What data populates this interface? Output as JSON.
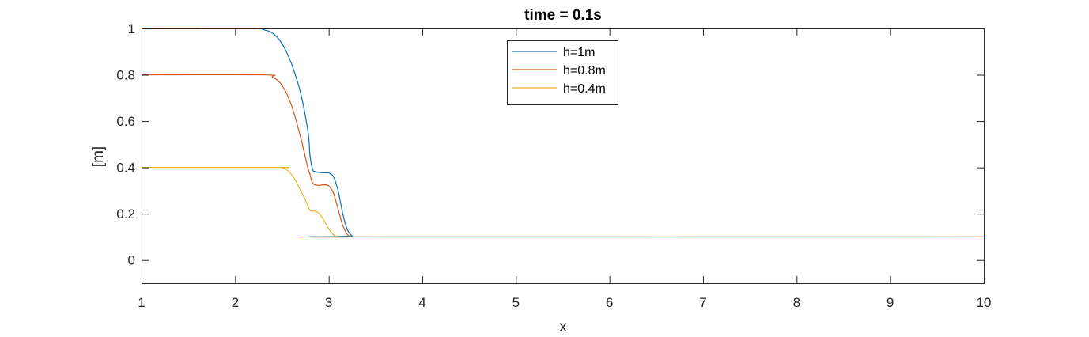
{
  "chart_data": {
    "type": "line",
    "title": "time = 0.1s",
    "xlabel": "x",
    "ylabel": "[m]",
    "xlim": [
      1,
      10
    ],
    "ylim": [
      -0.1,
      1
    ],
    "xticks": [
      1,
      2,
      3,
      4,
      5,
      6,
      7,
      8,
      9,
      10
    ],
    "yticks": [
      0,
      0.2,
      0.4,
      0.6,
      0.8,
      1
    ],
    "xtick_labels": [
      "1",
      "2",
      "3",
      "4",
      "5",
      "6",
      "7",
      "8",
      "9",
      "10"
    ],
    "ytick_labels": [
      "0",
      "0.2",
      "0.4",
      "0.6",
      "0.8",
      "1"
    ],
    "grid": false,
    "legend_position": "top-center",
    "series": [
      {
        "name": "h=1m",
        "color": "#0072BD",
        "x": [
          1,
          2.2,
          2.3,
          2.4,
          2.5,
          2.6,
          2.7,
          2.78,
          2.8,
          2.83,
          2.86,
          2.9,
          2.95,
          3.0,
          3.05,
          3.1,
          3.15,
          3.2,
          3.25,
          3.3,
          10
        ],
        "y": [
          1.0,
          1.0,
          0.995,
          0.98,
          0.935,
          0.85,
          0.72,
          0.55,
          0.45,
          0.39,
          0.382,
          0.378,
          0.377,
          0.376,
          0.36,
          0.3,
          0.2,
          0.13,
          0.105,
          0.1,
          0.1
        ]
      },
      {
        "name": "h=0.8m",
        "color": "#D95319",
        "x": [
          1,
          2.3,
          2.4,
          2.5,
          2.6,
          2.7,
          2.77,
          2.8,
          2.82,
          2.85,
          2.9,
          2.95,
          3.0,
          3.05,
          3.1,
          3.15,
          3.2,
          3.25,
          3.3,
          10
        ],
        "y": [
          0.8,
          0.8,
          0.79,
          0.755,
          0.67,
          0.53,
          0.41,
          0.37,
          0.34,
          0.325,
          0.323,
          0.325,
          0.32,
          0.29,
          0.22,
          0.15,
          0.11,
          0.1,
          0.1,
          0.1
        ]
      },
      {
        "name": "h=0.4m",
        "color": "#EDB120",
        "x": [
          1,
          2.45,
          2.5,
          2.55,
          2.6,
          2.65,
          2.7,
          2.75,
          2.8,
          2.85,
          2.9,
          2.95,
          3.0,
          3.05,
          3.1,
          3.15,
          3.2,
          10
        ],
        "y": [
          0.4,
          0.4,
          0.398,
          0.39,
          0.37,
          0.34,
          0.3,
          0.26,
          0.215,
          0.212,
          0.2,
          0.17,
          0.135,
          0.11,
          0.1,
          0.1,
          0.1,
          0.1
        ]
      }
    ]
  }
}
